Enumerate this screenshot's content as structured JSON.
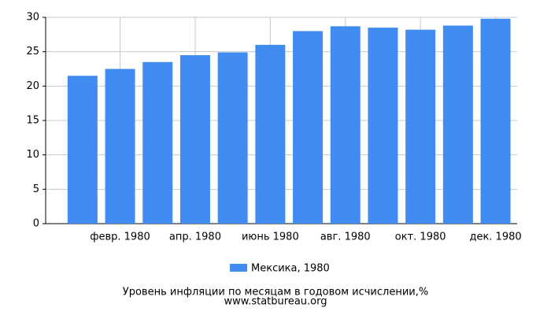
{
  "chart_data": {
    "type": "bar",
    "title": "Уровень инфляции по месяцам в годовом исчислении,%",
    "source": "www.statbureau.org",
    "categories": [
      null,
      "февр. 1980",
      null,
      "апр. 1980",
      null,
      "июнь 1980",
      null,
      "авг. 1980",
      null,
      "окт. 1980",
      null,
      "дек. 1980"
    ],
    "series": [
      {
        "name": "Мексика, 1980",
        "color": "#418cf0",
        "values": [
          21.5,
          22.5,
          23.5,
          24.5,
          24.9,
          26.0,
          28.0,
          28.7,
          28.5,
          28.2,
          28.8,
          29.8
        ]
      }
    ],
    "ylim": [
      0,
      30
    ],
    "yticks": [
      0,
      5,
      10,
      15,
      20,
      25,
      30
    ],
    "grid": true
  }
}
